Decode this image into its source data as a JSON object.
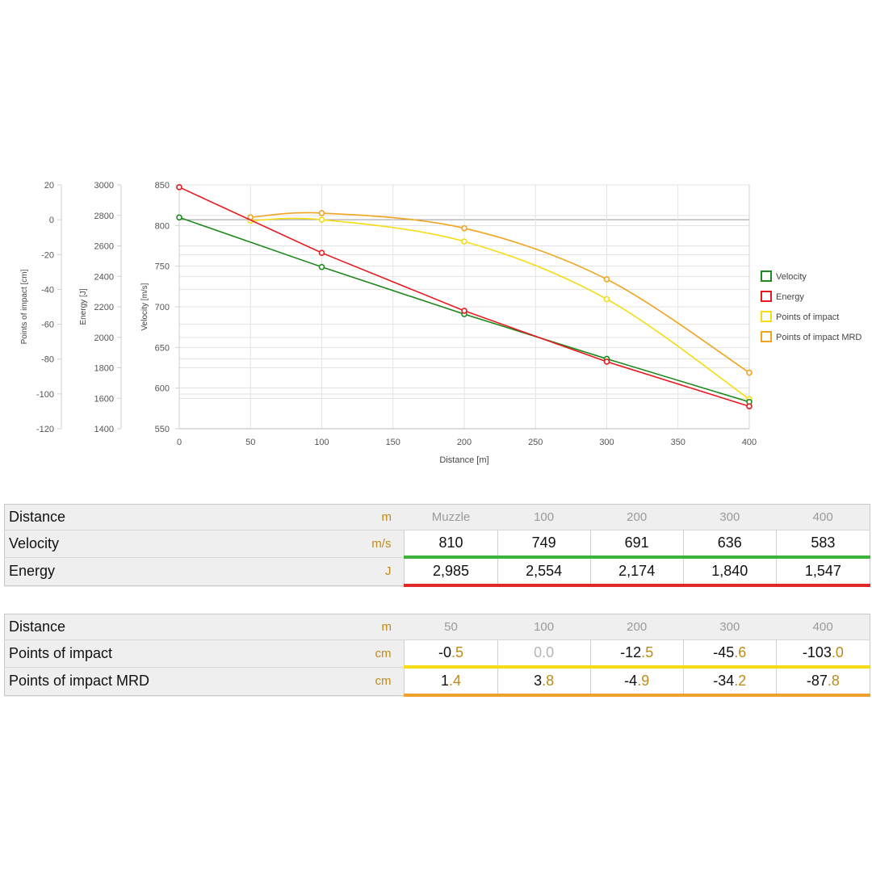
{
  "chart_data": {
    "type": "line",
    "xlabel": "Distance [m]",
    "xlim": [
      0,
      400
    ],
    "xticks": [
      0,
      50,
      100,
      150,
      200,
      250,
      300,
      350,
      400
    ],
    "grid": true,
    "legend_position": "right",
    "axes": [
      {
        "id": "velocity",
        "label": "Velocity [m/s]",
        "range": [
          550,
          850
        ],
        "ticks": [
          550,
          600,
          650,
          700,
          750,
          800,
          850
        ]
      },
      {
        "id": "energy",
        "label": "Energy [J]",
        "range": [
          1400,
          3000
        ],
        "ticks": [
          1400,
          1600,
          1800,
          2000,
          2200,
          2400,
          2600,
          2800,
          3000
        ]
      },
      {
        "id": "poi",
        "label": "Points of impact [cm]",
        "range": [
          -120,
          20
        ],
        "ticks": [
          -120,
          -100,
          -80,
          -60,
          -40,
          -20,
          0,
          20
        ]
      }
    ],
    "series": [
      {
        "name": "Velocity",
        "axis": "velocity",
        "color": "#1e8a1e",
        "curve": "linear",
        "x": [
          0,
          100,
          200,
          300,
          400
        ],
        "y": [
          810,
          749,
          691,
          636,
          583
        ]
      },
      {
        "name": "Energy",
        "axis": "energy",
        "color": "#e8191e",
        "curve": "linear",
        "x": [
          0,
          100,
          200,
          300,
          400
        ],
        "y": [
          2985,
          2554,
          2174,
          1840,
          1547
        ]
      },
      {
        "name": "Points of impact",
        "axis": "poi",
        "color": "#f5dc14",
        "curve": "smooth",
        "x": [
          50,
          100,
          200,
          300,
          400
        ],
        "y": [
          -0.5,
          0.0,
          -12.5,
          -45.6,
          -103.0
        ]
      },
      {
        "name": "Points of impact MRD",
        "axis": "poi",
        "color": "#f2a31f",
        "curve": "smooth",
        "x": [
          50,
          100,
          200,
          300,
          400
        ],
        "y": [
          1.4,
          3.8,
          -4.9,
          -34.2,
          -87.8
        ]
      }
    ]
  },
  "table1": {
    "header": {
      "label": "Distance",
      "unit": "m",
      "cols": [
        "Muzzle",
        "100",
        "200",
        "300",
        "400"
      ]
    },
    "rows": [
      {
        "label": "Velocity",
        "unit": "m/s",
        "values": [
          "810",
          "749",
          "691",
          "636",
          "583"
        ]
      },
      {
        "label": "Energy",
        "unit": "J",
        "values": [
          "2,985",
          "2,554",
          "2,174",
          "1,840",
          "1,547"
        ]
      }
    ]
  },
  "table2": {
    "header": {
      "label": "Distance",
      "unit": "m",
      "cols": [
        "50",
        "100",
        "200",
        "300",
        "400"
      ]
    },
    "rows": [
      {
        "label": "Points of impact",
        "unit": "cm",
        "values": [
          {
            "int": "-0",
            "dec": ".5"
          },
          {
            "int": "0",
            "dec": ".0"
          },
          {
            "int": "-12",
            "dec": ".5"
          },
          {
            "int": "-45",
            "dec": ".6"
          },
          {
            "int": "-103",
            "dec": ".0"
          }
        ]
      },
      {
        "label": "Points of impact MRD",
        "unit": "cm",
        "values": [
          {
            "int": "1",
            "dec": ".4"
          },
          {
            "int": "3",
            "dec": ".8"
          },
          {
            "int": "-4",
            "dec": ".9"
          },
          {
            "int": "-34",
            "dec": ".2"
          },
          {
            "int": "-87",
            "dec": ".8"
          }
        ]
      }
    ]
  }
}
